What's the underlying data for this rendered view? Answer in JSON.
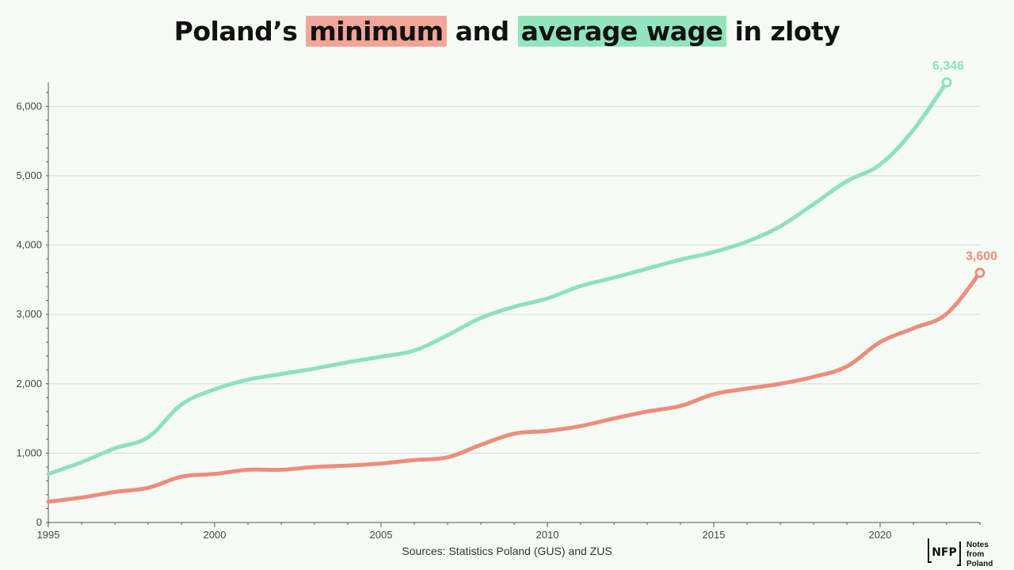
{
  "title": {
    "prefix": "Poland’s",
    "highlight1": "minimum",
    "middle": "and",
    "highlight2": "average wage",
    "suffix": "in zloty"
  },
  "source": "Sources: Statistics Poland (GUS) and ZUS",
  "logo": {
    "mark": "NFP",
    "line1": "Notes from",
    "line2": "Poland"
  },
  "colors": {
    "minimum": "#ee8c7c",
    "average": "#8ee2bb",
    "background": "#f6fcf5"
  },
  "chart_data": {
    "type": "line",
    "title": "Poland’s minimum and average wage in zloty",
    "xlabel": "",
    "ylabel": "",
    "xlim": [
      1995,
      2023
    ],
    "ylim": [
      0,
      6346
    ],
    "x_ticks": [
      1995,
      2000,
      2005,
      2010,
      2015,
      2020
    ],
    "x_tick_labels": [
      "1995",
      "2000",
      "2005",
      "2010",
      "2015",
      "2020"
    ],
    "y_ticks": [
      0,
      1000,
      2000,
      3000,
      4000,
      5000,
      6000
    ],
    "y_tick_labels": [
      "0",
      "1,000",
      "2,000",
      "3,000",
      "4,000",
      "5,000",
      "6,000"
    ],
    "grid": true,
    "legend": "none (colored highlights in title)",
    "series": [
      {
        "name": "average wage",
        "color": "#8ee2bb",
        "end_label": "6,346",
        "x": [
          1995,
          1996,
          1997,
          1998,
          1999,
          2000,
          2001,
          2002,
          2003,
          2004,
          2005,
          2006,
          2007,
          2008,
          2009,
          2010,
          2011,
          2012,
          2013,
          2014,
          2015,
          2016,
          2017,
          2018,
          2019,
          2020,
          2021,
          2022
        ],
        "values": [
          700,
          870,
          1070,
          1230,
          1700,
          1920,
          2060,
          2140,
          2220,
          2310,
          2390,
          2480,
          2700,
          2950,
          3110,
          3230,
          3410,
          3530,
          3660,
          3790,
          3900,
          4050,
          4270,
          4590,
          4920,
          5160,
          5660,
          6346
        ]
      },
      {
        "name": "minimum wage",
        "color": "#ee8c7c",
        "end_label": "3,600",
        "x": [
          1995,
          1996,
          1997,
          1998,
          1999,
          2000,
          2001,
          2002,
          2003,
          2004,
          2005,
          2006,
          2007,
          2008,
          2009,
          2010,
          2011,
          2012,
          2013,
          2014,
          2015,
          2016,
          2017,
          2018,
          2019,
          2020,
          2021,
          2022,
          2023
        ],
        "values": [
          300,
          360,
          440,
          500,
          660,
          700,
          760,
          760,
          800,
          820,
          850,
          900,
          940,
          1120,
          1280,
          1320,
          1390,
          1500,
          1600,
          1680,
          1850,
          1930,
          2000,
          2100,
          2250,
          2600,
          2800,
          3010,
          3600
        ]
      }
    ]
  }
}
